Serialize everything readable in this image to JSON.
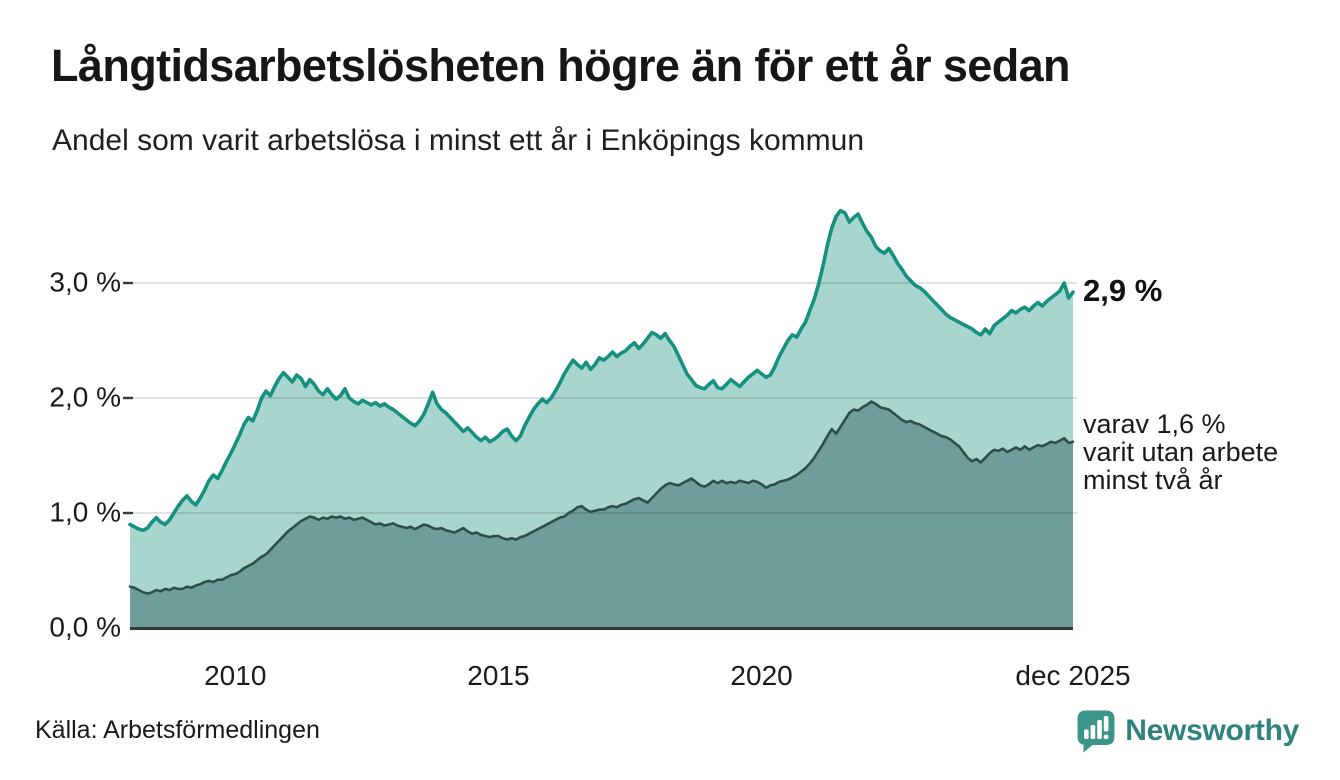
{
  "header": {
    "title": "Långtidsarbetslösheten högre än för ett år sedan",
    "subtitle": "Andel som varit arbetslösa i minst ett år i Enköpings kommun"
  },
  "annotations": {
    "latest_total": "2,9 %",
    "subseries_note": "varav 1,6 %\nvarit utan arbete\nminst två år"
  },
  "footer": {
    "source": "Källa: Arbetsförmedlingen",
    "brand": "Newsworthy"
  },
  "colors": {
    "line_min_one_year": "#16917f",
    "fill_min_one_year": "#a8d5cd",
    "line_min_two_years": "#2d4f4a",
    "fill_min_two_years": "#6f9d99",
    "grid": "rgba(0,0,0,0.11)",
    "axis": "#333b3a",
    "brand_teal": "#2f837c",
    "logo_bubble": "#3b9488"
  },
  "chart_data": {
    "type": "area",
    "title": "Långtidsarbetslösheten högre än för ett år sedan",
    "subtitle": "Andel som varit arbetslösa i minst ett år i Enköpings kommun",
    "x_unit": "month",
    "x_start": "2008-01",
    "x_end": "2025-12",
    "ylim": [
      0,
      3.8
    ],
    "grid": true,
    "legend": "right-annotations",
    "yticks": [
      {
        "value": 0,
        "label": "0,0 %"
      },
      {
        "value": 1,
        "label": "1,0 %"
      },
      {
        "value": 2,
        "label": "2,0 %"
      },
      {
        "value": 3,
        "label": "3,0 %"
      }
    ],
    "xticks": [
      {
        "index": 24,
        "label": "2010"
      },
      {
        "index": 84,
        "label": "2015"
      },
      {
        "index": 144,
        "label": "2020"
      },
      {
        "index": 215,
        "label": "dec 2025"
      }
    ],
    "series": [
      {
        "id": "unemployed_min_one_year",
        "label": "Andel arbetslösa minst ett år",
        "latest_label": "2,9 %",
        "values": [
          0.9,
          0.88,
          0.86,
          0.85,
          0.87,
          0.92,
          0.96,
          0.92,
          0.9,
          0.94,
          1.0,
          1.06,
          1.11,
          1.15,
          1.1,
          1.07,
          1.13,
          1.2,
          1.28,
          1.33,
          1.3,
          1.37,
          1.45,
          1.52,
          1.6,
          1.68,
          1.77,
          1.83,
          1.8,
          1.89,
          2.0,
          2.06,
          2.02,
          2.1,
          2.17,
          2.22,
          2.18,
          2.14,
          2.2,
          2.17,
          2.1,
          2.16,
          2.12,
          2.06,
          2.03,
          2.08,
          2.03,
          1.99,
          2.02,
          2.08,
          2.0,
          1.97,
          1.95,
          1.98,
          1.96,
          1.94,
          1.96,
          1.93,
          1.95,
          1.92,
          1.9,
          1.87,
          1.84,
          1.81,
          1.78,
          1.76,
          1.8,
          1.86,
          1.95,
          2.05,
          1.95,
          1.9,
          1.87,
          1.83,
          1.79,
          1.75,
          1.71,
          1.74,
          1.7,
          1.66,
          1.63,
          1.66,
          1.62,
          1.64,
          1.67,
          1.71,
          1.73,
          1.67,
          1.63,
          1.67,
          1.76,
          1.83,
          1.9,
          1.95,
          1.99,
          1.96,
          2.0,
          2.06,
          2.13,
          2.21,
          2.27,
          2.33,
          2.29,
          2.26,
          2.31,
          2.25,
          2.29,
          2.35,
          2.33,
          2.36,
          2.4,
          2.36,
          2.39,
          2.41,
          2.45,
          2.48,
          2.43,
          2.47,
          2.52,
          2.57,
          2.55,
          2.52,
          2.56,
          2.5,
          2.45,
          2.37,
          2.29,
          2.21,
          2.16,
          2.11,
          2.09,
          2.08,
          2.12,
          2.15,
          2.09,
          2.08,
          2.12,
          2.16,
          2.13,
          2.1,
          2.14,
          2.18,
          2.21,
          2.24,
          2.21,
          2.18,
          2.2,
          2.27,
          2.36,
          2.43,
          2.5,
          2.55,
          2.53,
          2.6,
          2.66,
          2.76,
          2.86,
          2.99,
          3.15,
          3.33,
          3.48,
          3.58,
          3.63,
          3.61,
          3.53,
          3.57,
          3.6,
          3.52,
          3.45,
          3.4,
          3.32,
          3.28,
          3.26,
          3.3,
          3.24,
          3.17,
          3.12,
          3.06,
          3.02,
          2.98,
          2.96,
          2.93,
          2.89,
          2.85,
          2.81,
          2.77,
          2.73,
          2.7,
          2.68,
          2.66,
          2.64,
          2.62,
          2.6,
          2.57,
          2.55,
          2.6,
          2.56,
          2.63,
          2.66,
          2.69,
          2.72,
          2.76,
          2.74,
          2.77,
          2.79,
          2.76,
          2.8,
          2.83,
          2.8,
          2.84,
          2.87,
          2.9,
          2.93,
          3.0,
          2.87,
          2.92
        ]
      },
      {
        "id": "unemployed_min_two_years",
        "label": "varav utan arbete minst två år",
        "latest_label": "1,6 %",
        "values": [
          0.36,
          0.35,
          0.33,
          0.31,
          0.3,
          0.31,
          0.33,
          0.32,
          0.34,
          0.33,
          0.35,
          0.34,
          0.34,
          0.36,
          0.35,
          0.37,
          0.38,
          0.4,
          0.41,
          0.4,
          0.42,
          0.42,
          0.44,
          0.46,
          0.47,
          0.49,
          0.52,
          0.54,
          0.56,
          0.59,
          0.62,
          0.64,
          0.68,
          0.72,
          0.76,
          0.8,
          0.84,
          0.87,
          0.9,
          0.93,
          0.95,
          0.97,
          0.96,
          0.94,
          0.96,
          0.95,
          0.97,
          0.96,
          0.97,
          0.95,
          0.96,
          0.94,
          0.95,
          0.96,
          0.94,
          0.92,
          0.9,
          0.91,
          0.89,
          0.9,
          0.91,
          0.89,
          0.88,
          0.87,
          0.88,
          0.86,
          0.88,
          0.9,
          0.89,
          0.87,
          0.86,
          0.87,
          0.85,
          0.84,
          0.83,
          0.85,
          0.87,
          0.84,
          0.82,
          0.83,
          0.81,
          0.8,
          0.79,
          0.8,
          0.8,
          0.78,
          0.77,
          0.78,
          0.77,
          0.79,
          0.8,
          0.82,
          0.84,
          0.86,
          0.88,
          0.9,
          0.92,
          0.94,
          0.96,
          0.97,
          1.0,
          1.02,
          1.05,
          1.06,
          1.03,
          1.01,
          1.02,
          1.03,
          1.03,
          1.05,
          1.06,
          1.05,
          1.07,
          1.08,
          1.1,
          1.12,
          1.13,
          1.11,
          1.09,
          1.13,
          1.17,
          1.21,
          1.24,
          1.26,
          1.25,
          1.24,
          1.26,
          1.28,
          1.3,
          1.27,
          1.24,
          1.23,
          1.25,
          1.28,
          1.26,
          1.28,
          1.26,
          1.27,
          1.26,
          1.28,
          1.27,
          1.26,
          1.28,
          1.27,
          1.25,
          1.22,
          1.24,
          1.25,
          1.27,
          1.28,
          1.29,
          1.31,
          1.33,
          1.36,
          1.39,
          1.43,
          1.48,
          1.54,
          1.6,
          1.67,
          1.73,
          1.69,
          1.75,
          1.81,
          1.87,
          1.9,
          1.89,
          1.92,
          1.94,
          1.97,
          1.95,
          1.92,
          1.91,
          1.9,
          1.87,
          1.84,
          1.81,
          1.79,
          1.8,
          1.78,
          1.77,
          1.75,
          1.73,
          1.71,
          1.69,
          1.67,
          1.66,
          1.64,
          1.61,
          1.58,
          1.53,
          1.48,
          1.45,
          1.47,
          1.44,
          1.48,
          1.52,
          1.55,
          1.54,
          1.56,
          1.53,
          1.55,
          1.57,
          1.55,
          1.58,
          1.55,
          1.57,
          1.59,
          1.58,
          1.6,
          1.62,
          1.61,
          1.63,
          1.65,
          1.61,
          1.62
        ]
      }
    ]
  }
}
